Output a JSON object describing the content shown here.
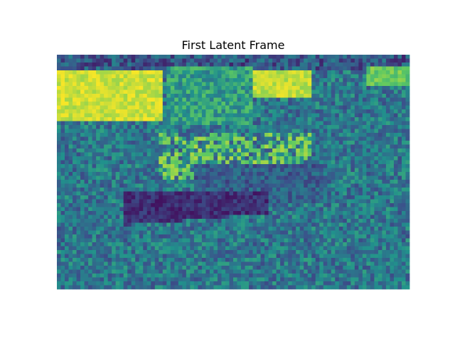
{
  "figure": {
    "background": "#ffffff"
  },
  "chart_data": {
    "type": "heatmap",
    "title": "First Latent Frame",
    "xlabel": "",
    "ylabel": "",
    "colormap": "viridis",
    "colormap_stops": [
      "#440154",
      "#3b528b",
      "#21918c",
      "#5ec962",
      "#fde725"
    ],
    "axes_visible": false,
    "grid": false,
    "legend": "none",
    "rows": 60,
    "cols": 90,
    "value_range": [
      0,
      1
    ],
    "scene_description_values": {
      "sky_band_upper_left": 0.92,
      "sky_band_upper_right": 0.9,
      "dark_top_strip": 0.1,
      "background_foliage": 0.55,
      "boat_hull": 0.05,
      "boat_cabin": 0.3,
      "plants_on_boat": 0.78,
      "grass_foreground": 0.4
    }
  }
}
